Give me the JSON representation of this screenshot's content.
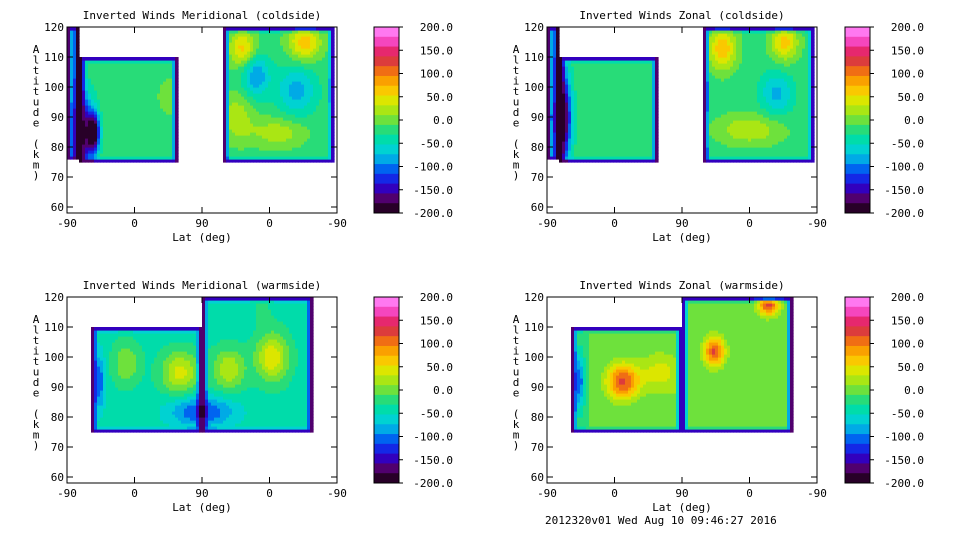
{
  "chart_data": [
    {
      "type": "heatmap",
      "title": "Inverted Winds Meridional (coldside)",
      "xlabel": "Lat (deg)",
      "ylabel": "Altitude (km)",
      "x_ticks": [
        "-90",
        "0",
        "90",
        "0",
        "-90"
      ],
      "ylim": [
        58,
        120
      ],
      "y_ticks": [
        "60",
        "70",
        "80",
        "90",
        "100",
        "110",
        "120"
      ],
      "colorbar": {
        "min": -200,
        "max": 200,
        "ticks": [
          "200.0",
          "150.0",
          "100.0",
          "50.0",
          "0.0",
          "-50.0",
          "-100.0",
          "-150.0",
          "-200.0"
        ]
      },
      "field_blobs": [
        {
          "xi": 0.06,
          "alt": 85,
          "value": -170,
          "w": 0.04,
          "h": 12
        },
        {
          "xi": 0.1,
          "alt": 85,
          "value": -200,
          "w": 0.02,
          "h": 6
        },
        {
          "xi": 0.22,
          "alt": 96,
          "value": -15,
          "w": 0.07,
          "h": 9
        },
        {
          "xi": 0.38,
          "alt": 97,
          "value": -5,
          "w": 0.06,
          "h": 9
        },
        {
          "xi": 0.65,
          "alt": 113,
          "value": 60,
          "w": 0.05,
          "h": 6
        },
        {
          "xi": 0.7,
          "alt": 104,
          "value": -95,
          "w": 0.05,
          "h": 7
        },
        {
          "xi": 0.85,
          "alt": 99,
          "value": -85,
          "w": 0.07,
          "h": 8
        },
        {
          "xi": 0.88,
          "alt": 115,
          "value": 65,
          "w": 0.06,
          "h": 6
        },
        {
          "xi": 0.63,
          "alt": 90,
          "value": 25,
          "w": 0.06,
          "h": 8
        },
        {
          "xi": 0.78,
          "alt": 85,
          "value": 25,
          "w": 0.1,
          "h": 5
        }
      ],
      "field_base": -20
    },
    {
      "type": "heatmap",
      "title": "Inverted Winds Zonal (coldside)",
      "xlabel": "Lat (deg)",
      "ylabel": "Altitude (km)",
      "x_ticks": [
        "-90",
        "0",
        "90",
        "0",
        "-90"
      ],
      "ylim": [
        58,
        120
      ],
      "y_ticks": [
        "60",
        "70",
        "80",
        "90",
        "100",
        "110",
        "120"
      ],
      "colorbar": {
        "min": -200,
        "max": 200,
        "ticks": [
          "200.0",
          "150.0",
          "100.0",
          "50.0",
          "0.0",
          "-50.0",
          "-100.0",
          "-150.0",
          "-200.0"
        ]
      },
      "field_blobs": [
        {
          "xi": 0.06,
          "alt": 90,
          "value": -200,
          "w": 0.03,
          "h": 14
        },
        {
          "xi": 0.25,
          "alt": 95,
          "value": -20,
          "w": 0.07,
          "h": 8
        },
        {
          "xi": 0.36,
          "alt": 90,
          "value": -30,
          "w": 0.05,
          "h": 7
        },
        {
          "xi": 0.65,
          "alt": 113,
          "value": 70,
          "w": 0.05,
          "h": 7
        },
        {
          "xi": 0.88,
          "alt": 115,
          "value": 60,
          "w": 0.05,
          "h": 6
        },
        {
          "xi": 0.85,
          "alt": 98,
          "value": -80,
          "w": 0.06,
          "h": 7
        },
        {
          "xi": 0.75,
          "alt": 86,
          "value": 30,
          "w": 0.12,
          "h": 5
        }
      ],
      "field_base": -20
    },
    {
      "type": "heatmap",
      "title": "Inverted Winds Meridional (warmside)",
      "xlabel": "Lat (deg)",
      "ylabel": "Altitude (km)",
      "x_ticks": [
        "-90",
        "0",
        "90",
        "0",
        "-90"
      ],
      "ylim": [
        58,
        120
      ],
      "y_ticks": [
        "60",
        "70",
        "80",
        "90",
        "100",
        "110",
        "120"
      ],
      "colorbar": {
        "min": -200,
        "max": 200,
        "ticks": [
          "200.0",
          "150.0",
          "100.0",
          "50.0",
          "0.0",
          "-50.0",
          "-100.0",
          "-150.0",
          "-200.0"
        ]
      },
      "field_blobs": [
        {
          "xi": 0.12,
          "alt": 92,
          "value": -110,
          "w": 0.02,
          "h": 10
        },
        {
          "xi": 0.22,
          "alt": 98,
          "value": 10,
          "w": 0.05,
          "h": 7
        },
        {
          "xi": 0.42,
          "alt": 95,
          "value": 40,
          "w": 0.07,
          "h": 7
        },
        {
          "xi": 0.6,
          "alt": 96,
          "value": 30,
          "w": 0.06,
          "h": 7
        },
        {
          "xi": 0.76,
          "alt": 100,
          "value": 50,
          "w": 0.06,
          "h": 8
        },
        {
          "xi": 0.72,
          "alt": 116,
          "value": -30,
          "w": 0.05,
          "h": 5
        },
        {
          "xi": 0.5,
          "alt": 82,
          "value": -120,
          "w": 0.12,
          "h": 5
        }
      ],
      "field_base": -40
    },
    {
      "type": "heatmap",
      "title": "Inverted Winds Zonal (warmside)",
      "xlabel": "Lat (deg)",
      "ylabel": "Altitude (km)",
      "x_ticks": [
        "-90",
        "0",
        "90",
        "0",
        "-90"
      ],
      "ylim": [
        58,
        120
      ],
      "y_ticks": [
        "60",
        "70",
        "80",
        "90",
        "100",
        "110",
        "120"
      ],
      "colorbar": {
        "min": -200,
        "max": 200,
        "ticks": [
          "200.0",
          "150.0",
          "100.0",
          "50.0",
          "0.0",
          "-50.0",
          "-100.0",
          "-150.0",
          "-200.0"
        ]
      },
      "field_blobs": [
        {
          "xi": 0.12,
          "alt": 92,
          "value": -110,
          "w": 0.02,
          "h": 10
        },
        {
          "xi": 0.28,
          "alt": 92,
          "value": 120,
          "w": 0.06,
          "h": 6
        },
        {
          "xi": 0.42,
          "alt": 95,
          "value": 40,
          "w": 0.08,
          "h": 7
        },
        {
          "xi": 0.62,
          "alt": 102,
          "value": 120,
          "w": 0.04,
          "h": 5
        },
        {
          "xi": 0.82,
          "alt": 118,
          "value": 130,
          "w": 0.04,
          "h": 4
        },
        {
          "xi": 0.55,
          "alt": 85,
          "value": 10,
          "w": 0.1,
          "h": 6
        }
      ],
      "field_base": -10
    }
  ],
  "footer": "2012320v01 Wed Aug 10 09:46:27 2016"
}
